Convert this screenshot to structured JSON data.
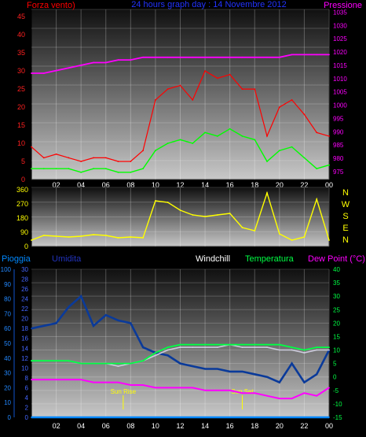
{
  "chart_data": [
    {
      "type": "line",
      "title": "24 hours graph day : 14 Novembre 2012",
      "left_axis_label": "Forza vento)",
      "right_axis_label": "Pressione",
      "x_ticks": [
        "02",
        "04",
        "06",
        "08",
        "10",
        "12",
        "14",
        "16",
        "18",
        "20",
        "22",
        "00"
      ],
      "y_left_ticks": [
        0,
        5,
        10,
        15,
        20,
        25,
        30,
        35,
        40,
        45
      ],
      "y_right_ticks": [
        975,
        980,
        985,
        990,
        995,
        1000,
        1005,
        1010,
        1015,
        1020,
        1025,
        1030,
        1035
      ],
      "y_left_range": [
        0,
        47
      ],
      "y_right_range": [
        972,
        1036
      ],
      "grid": true,
      "series": [
        {
          "color": "#ff0000",
          "axis": "left",
          "x": [
            0,
            1,
            2,
            3,
            4,
            5,
            6,
            7,
            8,
            9,
            10,
            11,
            12,
            13,
            14,
            15,
            16,
            17,
            18,
            19,
            20,
            21,
            22,
            23,
            24
          ],
          "values": [
            9,
            6,
            7,
            6,
            5,
            6,
            6,
            5,
            5,
            8,
            22,
            25,
            26,
            22,
            30,
            28,
            29,
            25,
            25,
            12,
            20,
            22,
            18,
            13,
            12
          ]
        },
        {
          "color": "#00ff00",
          "axis": "left",
          "x": [
            0,
            1,
            2,
            3,
            4,
            5,
            6,
            7,
            8,
            9,
            10,
            11,
            12,
            13,
            14,
            15,
            16,
            17,
            18,
            19,
            20,
            21,
            22,
            23,
            24
          ],
          "values": [
            3,
            3,
            3,
            3,
            2,
            3,
            3,
            2,
            2,
            3,
            8,
            10,
            11,
            10,
            13,
            12,
            14,
            12,
            11,
            5,
            8,
            9,
            6,
            3,
            4
          ]
        },
        {
          "color": "#ff00ff",
          "axis": "right",
          "x": [
            0,
            1,
            2,
            3,
            4,
            5,
            6,
            7,
            8,
            9,
            10,
            11,
            12,
            13,
            14,
            15,
            16,
            17,
            18,
            19,
            20,
            21,
            22,
            23,
            24
          ],
          "values": [
            1012,
            1012,
            1013,
            1014,
            1015,
            1016,
            1016,
            1017,
            1017,
            1018,
            1018,
            1018,
            1018,
            1018,
            1018,
            1018,
            1018,
            1018,
            1018,
            1018,
            1018,
            1019,
            1019,
            1019,
            1019
          ]
        }
      ]
    },
    {
      "type": "line",
      "right_labels": [
        "N",
        "W",
        "S",
        "E",
        "N"
      ],
      "x_ticks": [
        "02",
        "04",
        "06",
        "08",
        "10",
        "12",
        "14",
        "16",
        "18",
        "20",
        "22",
        "00"
      ],
      "y_ticks": [
        0,
        90,
        180,
        270,
        360
      ],
      "y_range": [
        0,
        375
      ],
      "grid": true,
      "series": [
        {
          "color": "#ffff00",
          "x": [
            0,
            1,
            2,
            3,
            4,
            5,
            6,
            7,
            8,
            9,
            10,
            11,
            12,
            13,
            14,
            15,
            16,
            17,
            18,
            19,
            20,
            21,
            22,
            23,
            24
          ],
          "values": [
            40,
            70,
            65,
            60,
            65,
            75,
            70,
            55,
            60,
            55,
            290,
            280,
            230,
            200,
            190,
            200,
            210,
            120,
            100,
            340,
            80,
            40,
            60,
            300,
            40
          ]
        }
      ]
    },
    {
      "type": "line",
      "labels": [
        "Pioggia",
        "Umidita",
        "Windchill",
        "Temperatura",
        "Dew Point (°C)"
      ],
      "label_colors": [
        "#0088ff",
        "#2233bb",
        "#ffffff",
        "#00ff44",
        "#ff00ff"
      ],
      "annotations": [
        "Sun Rise",
        "Sun Set"
      ],
      "annotation_x": [
        7.4,
        17.0
      ],
      "x_ticks": [
        "02",
        "04",
        "06",
        "08",
        "10",
        "12",
        "14",
        "16",
        "18",
        "20",
        "22",
        "00"
      ],
      "y_rain_ticks": [
        0,
        10,
        20,
        30,
        40,
        50,
        60,
        70,
        80,
        90,
        100
      ],
      "y_mid_ticks": [
        0,
        2,
        4,
        6,
        8,
        10,
        12,
        14,
        16,
        18,
        20,
        22,
        24,
        26,
        28,
        30
      ],
      "y_right_ticks": [
        -15,
        -10,
        -5,
        0,
        5,
        10,
        15,
        20,
        25,
        30,
        35,
        40
      ],
      "y_right_range": [
        -15,
        40
      ],
      "grid": true,
      "series": [
        {
          "color": "#0088ff",
          "axis": "right",
          "x": [
            0,
            24
          ],
          "values": [
            -15,
            -15
          ]
        },
        {
          "color": "#0a3a9a",
          "axis": "right",
          "x": [
            0,
            1,
            2,
            3,
            4,
            5,
            6,
            7,
            8,
            9,
            10,
            11,
            12,
            13,
            14,
            15,
            16,
            17,
            18,
            19,
            20,
            21,
            22,
            23,
            24
          ],
          "values": [
            18,
            19,
            20,
            26,
            30,
            19,
            23,
            21,
            20,
            11,
            9,
            8,
            5,
            4,
            3,
            3,
            2,
            2,
            1,
            0,
            -2,
            5,
            -2,
            1,
            10
          ]
        },
        {
          "color": "#ccccdd",
          "axis": "right",
          "x": [
            0,
            1,
            2,
            3,
            4,
            5,
            6,
            7,
            8,
            9,
            10,
            11,
            12,
            13,
            14,
            15,
            16,
            17,
            18,
            19,
            20,
            21,
            22,
            23,
            24
          ],
          "values": [
            6,
            6,
            6,
            6,
            5,
            5,
            5,
            4,
            5,
            6,
            8,
            10,
            11,
            11,
            11,
            11,
            12,
            11,
            11,
            11,
            10,
            10,
            9,
            10,
            10
          ]
        },
        {
          "color": "#00ff44",
          "axis": "right",
          "x": [
            0,
            1,
            2,
            3,
            4,
            5,
            6,
            7,
            8,
            9,
            10,
            11,
            12,
            13,
            14,
            15,
            16,
            17,
            18,
            19,
            20,
            21,
            22,
            23,
            24
          ],
          "values": [
            6,
            6,
            6,
            6,
            5,
            5,
            5,
            5,
            5,
            6,
            9,
            11,
            12,
            12,
            12,
            12,
            12,
            12,
            12,
            12,
            12,
            11,
            10,
            11,
            11
          ]
        },
        {
          "color": "#ff00ff",
          "axis": "right",
          "x": [
            0,
            1,
            2,
            3,
            4,
            5,
            6,
            7,
            8,
            9,
            10,
            11,
            12,
            13,
            14,
            15,
            16,
            17,
            18,
            19,
            20,
            21,
            22,
            23,
            24
          ],
          "values": [
            -1,
            -1,
            -1,
            -1,
            -1,
            -2,
            -2,
            -2,
            -3,
            -3,
            -4,
            -4,
            -4,
            -4,
            -5,
            -5,
            -5,
            -6,
            -6,
            -7,
            -8,
            -8,
            -6,
            -7,
            -4
          ]
        }
      ]
    }
  ]
}
